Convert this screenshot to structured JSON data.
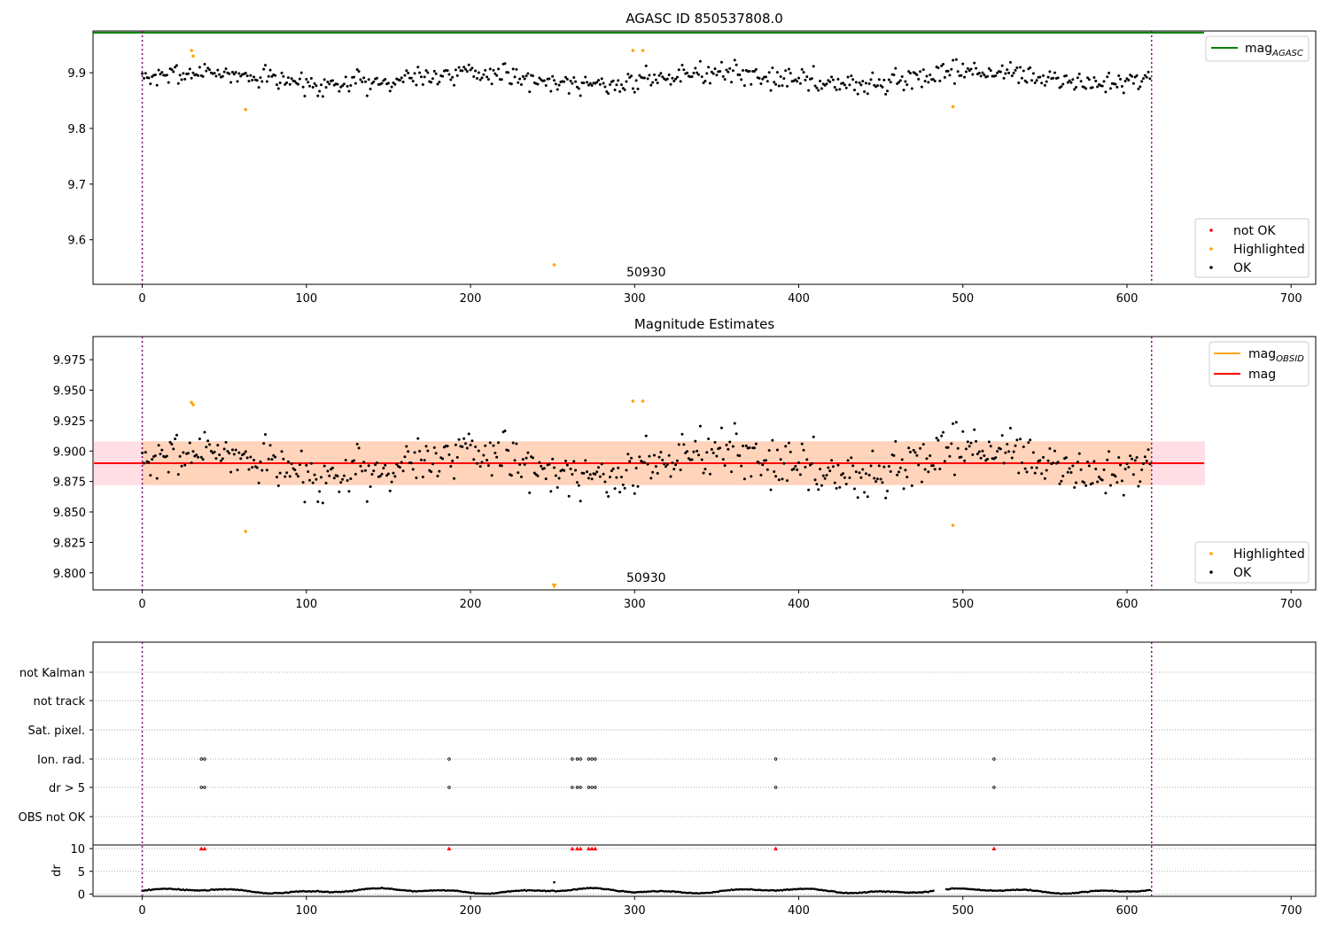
{
  "chart_data": [
    {
      "type": "scatter",
      "title": "AGASC ID 850537808.0",
      "xlim": [
        -30,
        715
      ],
      "ylim": [
        9.52,
        9.975
      ],
      "xticks": [
        0,
        100,
        200,
        300,
        400,
        500,
        600,
        700
      ],
      "yticks": [
        9.6,
        9.7,
        9.8,
        9.9
      ],
      "grid": false,
      "obsid_label": "50930",
      "obsid_label_x": 300,
      "obs_boundaries": [
        0,
        615
      ],
      "mag_agasc": 9.972,
      "mag_agasc_xrange": [
        -30,
        647
      ],
      "noise": {
        "center": 9.89,
        "spread": 0.02,
        "n": 615
      },
      "highlighted": [
        {
          "x": 30,
          "y": 9.94
        },
        {
          "x": 31,
          "y": 9.93
        },
        {
          "x": 63,
          "y": 9.834
        },
        {
          "x": 251,
          "y": 9.555
        },
        {
          "x": 299,
          "y": 9.94
        },
        {
          "x": 305,
          "y": 9.94
        },
        {
          "x": 494,
          "y": 9.839
        }
      ],
      "legend_upper": {
        "position": "upper right",
        "entries": [
          {
            "label": "mag_{AGASC}",
            "color": "#008000"
          }
        ]
      },
      "legend_lower": {
        "position": "lower right",
        "entries": [
          {
            "label": "not OK",
            "color": "#ff0000"
          },
          {
            "label": "Highlighted",
            "color": "#ffa500"
          },
          {
            "label": "OK",
            "color": "#000000"
          }
        ]
      }
    },
    {
      "type": "scatter",
      "title": "Magnitude Estimates",
      "xlim": [
        -30,
        715
      ],
      "ylim": [
        9.786,
        9.994
      ],
      "xticks": [
        0,
        100,
        200,
        300,
        400,
        500,
        600,
        700
      ],
      "yticks": [
        9.8,
        9.825,
        9.85,
        9.875,
        9.9,
        9.925,
        9.95,
        9.975
      ],
      "grid": false,
      "obsid_label": "50930",
      "obsid_label_x": 300,
      "obs_boundaries": [
        0,
        615
      ],
      "mag": 9.89,
      "mag_band": [
        9.872,
        9.908
      ],
      "mag_obsid_band": [
        9.872,
        9.908
      ],
      "band_xrange": [
        -30,
        647
      ],
      "obsid_band_xrange": [
        0,
        615
      ],
      "noise": {
        "center": 9.89,
        "spread": 0.02,
        "n": 615
      },
      "highlighted": [
        {
          "x": 30,
          "y": 9.94
        },
        {
          "x": 31,
          "y": 9.938
        },
        {
          "x": 63,
          "y": 9.834
        },
        {
          "x": 299,
          "y": 9.941
        },
        {
          "x": 305,
          "y": 9.941
        },
        {
          "x": 494,
          "y": 9.839
        }
      ],
      "offscale_marker": {
        "x": 251,
        "y": 9.789
      },
      "legend_upper": {
        "position": "upper right",
        "entries": [
          {
            "label": "mag_{OBSID}",
            "color": "#ffa500"
          },
          {
            "label": "mag",
            "color": "#ff0000"
          }
        ]
      },
      "legend_lower": {
        "position": "lower right",
        "entries": [
          {
            "label": "Highlighted",
            "color": "#ffa500"
          },
          {
            "label": "OK",
            "color": "#000000"
          }
        ]
      }
    },
    {
      "type": "scatter",
      "xlim": [
        -30,
        715
      ],
      "xticks": [
        0,
        100,
        200,
        300,
        400,
        500,
        600,
        700
      ],
      "obs_boundaries": [
        0,
        615
      ],
      "flag_rows": [
        "not Kalman",
        "not track",
        "Sat. pixel.",
        "Ion. rad.",
        "dr > 5",
        "OBS not OK"
      ],
      "flag_points": {
        "Ion. rad.": [
          36,
          38,
          187,
          262,
          265,
          267,
          272,
          274,
          276,
          386,
          519
        ],
        "dr > 5": [
          36,
          38,
          187,
          262,
          265,
          267,
          272,
          274,
          276,
          386,
          519
        ]
      },
      "dr_ylim": [
        -0.5,
        10.8
      ],
      "dr_yticks": [
        0,
        5,
        10
      ],
      "dr_ylabel": "dr",
      "dr_threshold_markers": [
        36,
        38,
        187,
        262,
        265,
        267,
        272,
        274,
        276,
        386,
        519
      ],
      "dr_outlier": {
        "x": 251,
        "y": 2.6
      },
      "dr_gap": [
        483,
        489
      ]
    }
  ]
}
